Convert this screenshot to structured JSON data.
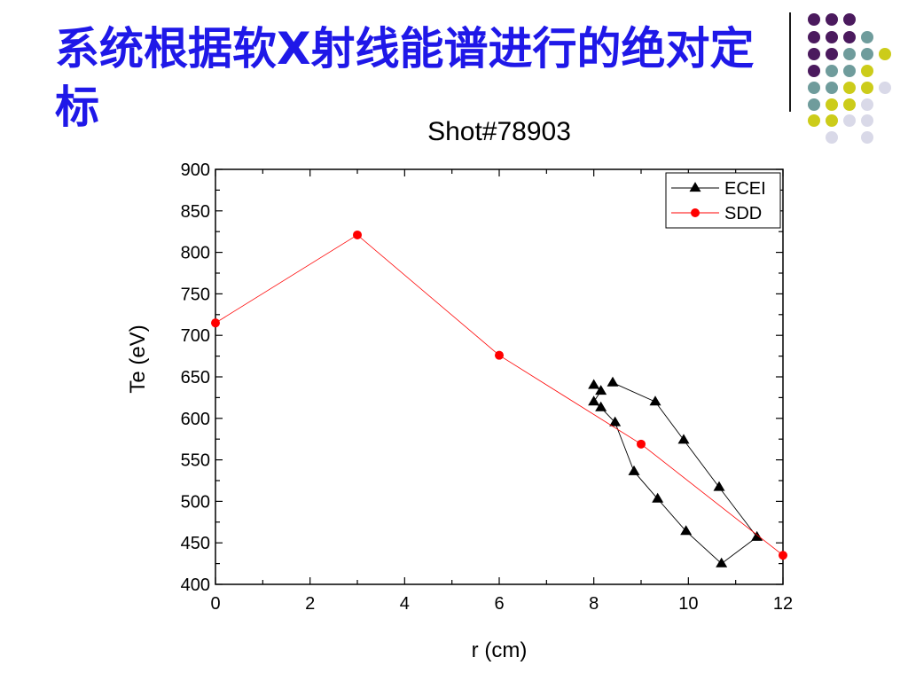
{
  "slide": {
    "title": "系统根据软X射线能谱进行的绝对定标"
  },
  "decor": {
    "dot_colors": {
      "purple": "#4b1a5e",
      "teal": "#6f9c9c",
      "yellow": "#cccc1a",
      "lavender": "#d9d9e8"
    },
    "divider_color": "#1a1a1a"
  },
  "chart_data": {
    "type": "line",
    "title": "Shot#78903",
    "xlabel": "r (cm)",
    "ylabel": "Te (eV)",
    "xlim": [
      0,
      12
    ],
    "ylim": [
      400,
      900
    ],
    "xticks": [
      0,
      2,
      4,
      6,
      8,
      10,
      12
    ],
    "yticks": [
      400,
      450,
      500,
      550,
      600,
      650,
      700,
      750,
      800,
      850,
      900
    ],
    "grid": false,
    "legend_position": "top-right",
    "series": [
      {
        "name": "ECEI",
        "color": "#000000",
        "marker": "triangle",
        "points": [
          [
            8.4,
            643
          ],
          [
            9.3,
            620
          ],
          [
            9.9,
            574
          ],
          [
            10.65,
            517
          ],
          [
            11.45,
            457
          ],
          [
            10.7,
            425
          ],
          [
            9.95,
            464
          ],
          [
            9.35,
            503
          ],
          [
            8.85,
            536
          ],
          [
            8.45,
            595
          ],
          [
            8.15,
            613
          ],
          [
            8.0,
            620
          ],
          [
            8.15,
            633
          ],
          [
            8.0,
            640
          ]
        ]
      },
      {
        "name": "SDD",
        "color": "#ff0000",
        "marker": "circle",
        "points": [
          [
            0,
            715
          ],
          [
            3,
            821
          ],
          [
            6,
            676
          ],
          [
            9,
            569
          ],
          [
            12,
            435
          ]
        ]
      }
    ]
  }
}
